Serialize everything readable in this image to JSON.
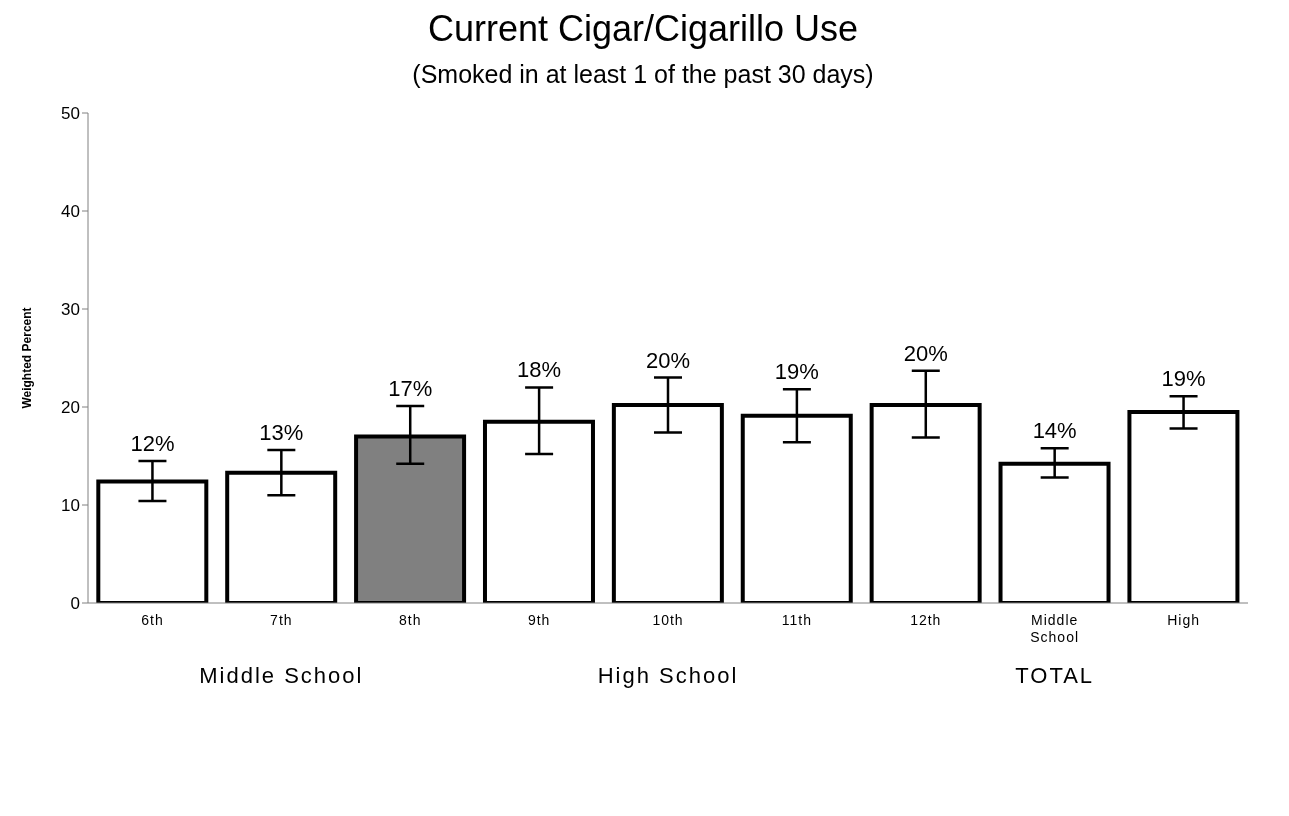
{
  "chart_data": {
    "type": "bar",
    "title": "Current Cigar/Cigarillo Use",
    "subtitle": "(Smoked in at least 1 of the past 30 days)",
    "ylabel": "Weighted Percent",
    "categories": [
      "6th",
      "7th",
      "8th",
      "9th",
      "10th",
      "11th",
      "12th",
      "Middle School",
      "High"
    ],
    "values": [
      12.4,
      13.3,
      17.0,
      18.5,
      20.2,
      19.1,
      20.2,
      14.2,
      19.5
    ],
    "colors": [
      "#ffffff",
      "#ffffff",
      "#808080",
      "#ffffff",
      "#ffffff",
      "#ffffff",
      "#ffffff",
      "#ffffff",
      "#ffffff"
    ],
    "errors": [
      [
        10.4,
        14.5
      ],
      [
        11.0,
        15.6
      ],
      [
        14.2,
        20.1
      ],
      [
        15.2,
        22.0
      ],
      [
        17.4,
        23.0
      ],
      [
        16.4,
        21.8
      ],
      [
        16.9,
        23.7
      ],
      [
        12.8,
        15.8
      ],
      [
        17.8,
        21.1
      ]
    ],
    "value_labels": [
      "12%",
      "13%",
      "17%",
      "18%",
      "20%",
      "19%",
      "20%",
      "14%",
      "19%"
    ],
    "ylim": [
      0,
      50
    ],
    "yticks": [
      0,
      10,
      20,
      30,
      40,
      50
    ],
    "grid": false,
    "legend": false,
    "annotations": [
      "Middle School",
      "High School",
      "TOTAL"
    ]
  }
}
